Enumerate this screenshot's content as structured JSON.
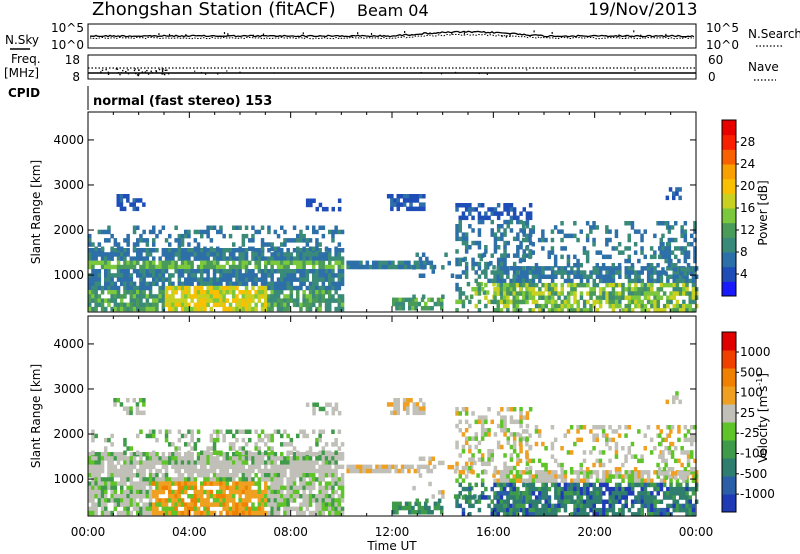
{
  "header": {
    "station": "Zhongshan Station (fitACF)",
    "beam": "Beam 04",
    "date": "19/Nov/2013"
  },
  "status": {
    "nsky_label": "N.Sky",
    "nsky_ticks": [
      "10^5",
      "10^0"
    ],
    "nsearch_label": "N.Search",
    "nsearch_ticks": [
      "10^5",
      "10^0"
    ],
    "freq_label": "Freq.",
    "freq_unit": "[MHz]",
    "freq_ticks": [
      "18",
      "8"
    ],
    "nave_label": "Nave",
    "nave_ticks": [
      "60",
      "0"
    ],
    "cpid_label": "CPID",
    "cpid_text": "normal (fast stereo) 153"
  },
  "colors": {
    "power": [
      "#1a1aff",
      "#1f4db8",
      "#2d6fa8",
      "#3a8a7a",
      "#4a9a5a",
      "#7cc83c",
      "#c8d020",
      "#f8c000",
      "#f8a000",
      "#f86000",
      "#f82000",
      "#e80000"
    ],
    "velocity": [
      "#1e3ab4",
      "#2a5fa8",
      "#2e7d6e",
      "#3f9a4a",
      "#5ec428",
      "#c0c0b8",
      "#f0a020",
      "#f08000",
      "#f04000",
      "#e00000"
    ]
  },
  "chart_data": [
    {
      "type": "heatmap",
      "name": "power",
      "ylabel": "Slant Range [km]",
      "xlabel": "Time UT",
      "yticks": [
        "1000",
        "2000",
        "3000",
        "4000"
      ],
      "xticks": [
        "00:00",
        "04:00",
        "08:00",
        "12:00",
        "16:00",
        "20:00",
        "00:00"
      ],
      "colorbar": {
        "label": "Power [dB]",
        "ticks": [
          "28",
          "24",
          "20",
          "16",
          "12",
          "8",
          "4"
        ],
        "range": [
          0,
          32
        ]
      },
      "xlim": [
        0,
        24
      ],
      "ylim": [
        180,
        4620
      ]
    },
    {
      "type": "heatmap",
      "name": "velocity",
      "ylabel": "Slant Range [km]",
      "xlabel": "Time UT",
      "yticks": [
        "1000",
        "2000",
        "3000",
        "4000"
      ],
      "xticks": [
        "00:00",
        "04:00",
        "08:00",
        "12:00",
        "16:00",
        "20:00",
        "00:00"
      ],
      "colorbar": {
        "label": "Velocity [m s",
        "label_sup": "-1",
        "ticks": [
          "1000",
          "500",
          "100",
          "25",
          "-25",
          "-100",
          "-500",
          "-1000"
        ]
      },
      "xlim": [
        0,
        24
      ],
      "ylim": [
        180,
        4620
      ]
    }
  ]
}
